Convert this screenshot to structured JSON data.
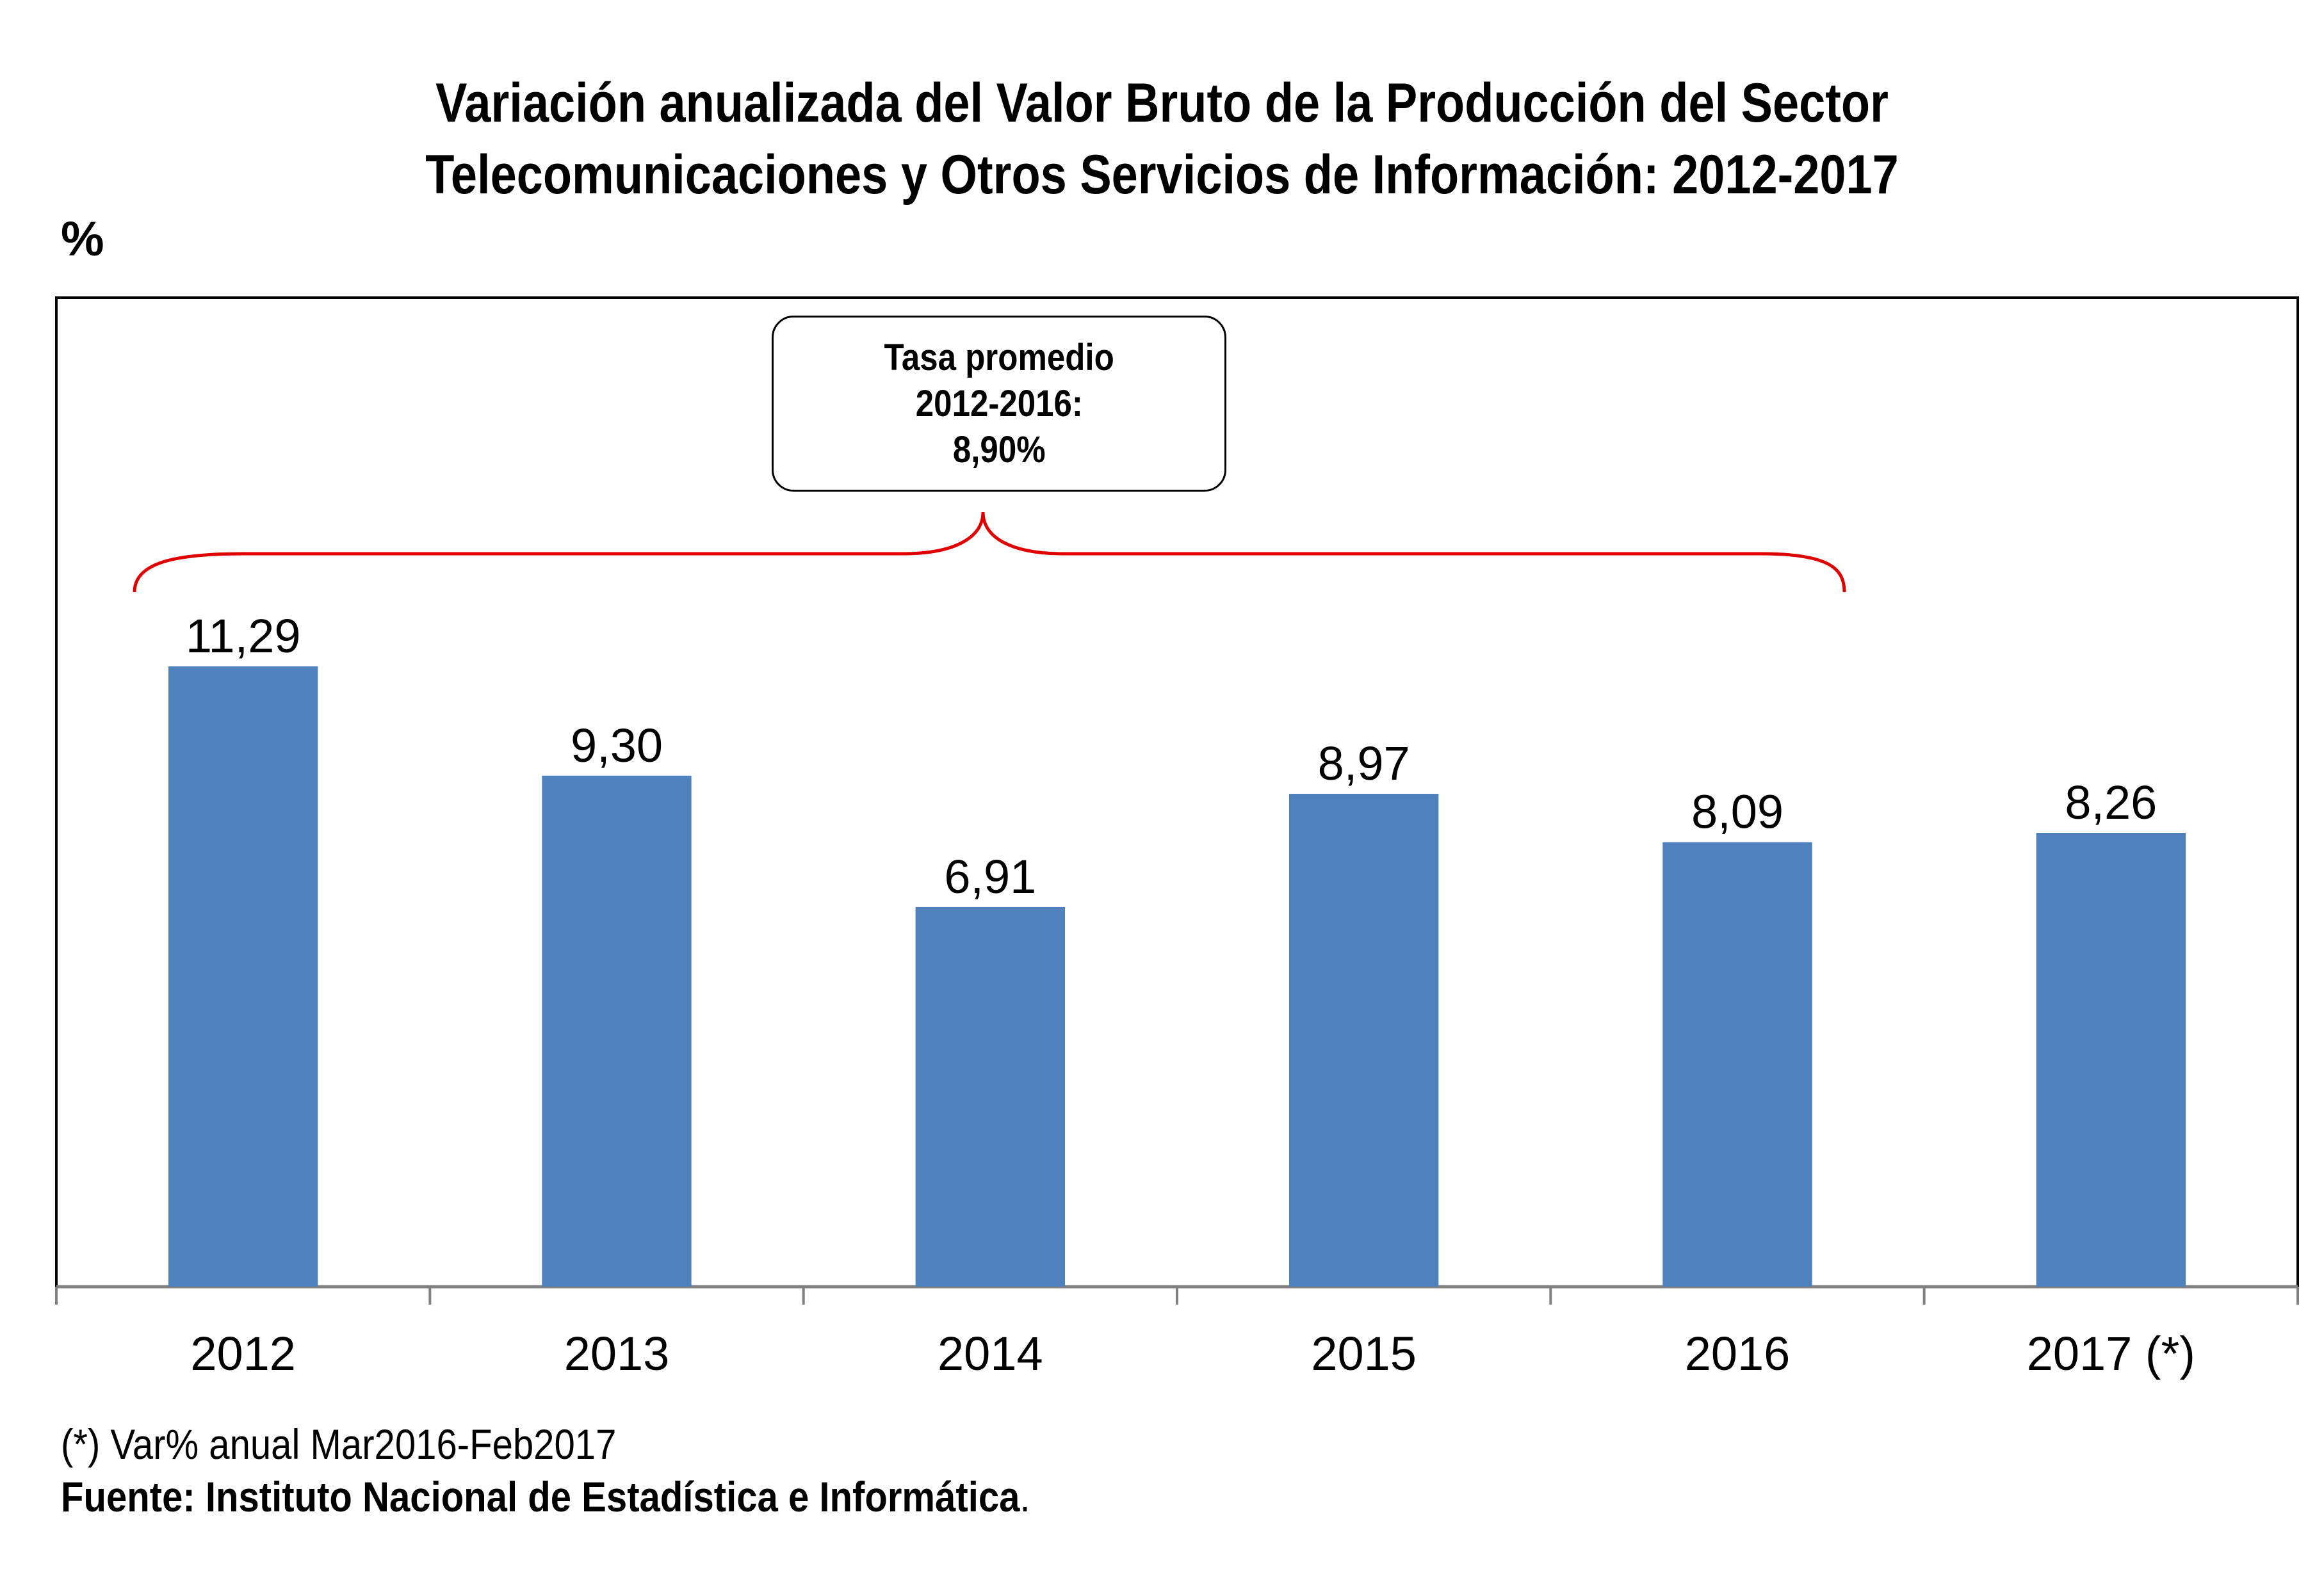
{
  "title_line1": "Variación anualizada del Valor Bruto de la Producción del Sector",
  "title_line2": "Telecomunicaciones y Otros Servicios de Información: 2012-2017",
  "unit_label": "%",
  "average_box": {
    "line1": "Tasa promedio",
    "line2": "2012-2016:",
    "line3": "8,90%"
  },
  "footnote": "(*) Var% anual Mar2016-Feb2017",
  "source_label": "Fuente: Instituto Nacional de Estadística e Informática",
  "source_dot": ".",
  "colors": {
    "bar": "#4f81bd",
    "bracket": "#e00000",
    "axis": "#808080"
  },
  "chart_data": {
    "type": "bar",
    "categories": [
      "2012",
      "2013",
      "2014",
      "2015",
      "2016",
      "2017 (*)"
    ],
    "values": [
      11.29,
      9.3,
      6.91,
      8.97,
      8.09,
      8.26
    ],
    "value_labels": [
      "11,29",
      "9,30",
      "6,91",
      "8,97",
      "8,09",
      "8,26"
    ],
    "ylim": [
      0,
      18
    ],
    "grid": false,
    "legend": "none"
  }
}
